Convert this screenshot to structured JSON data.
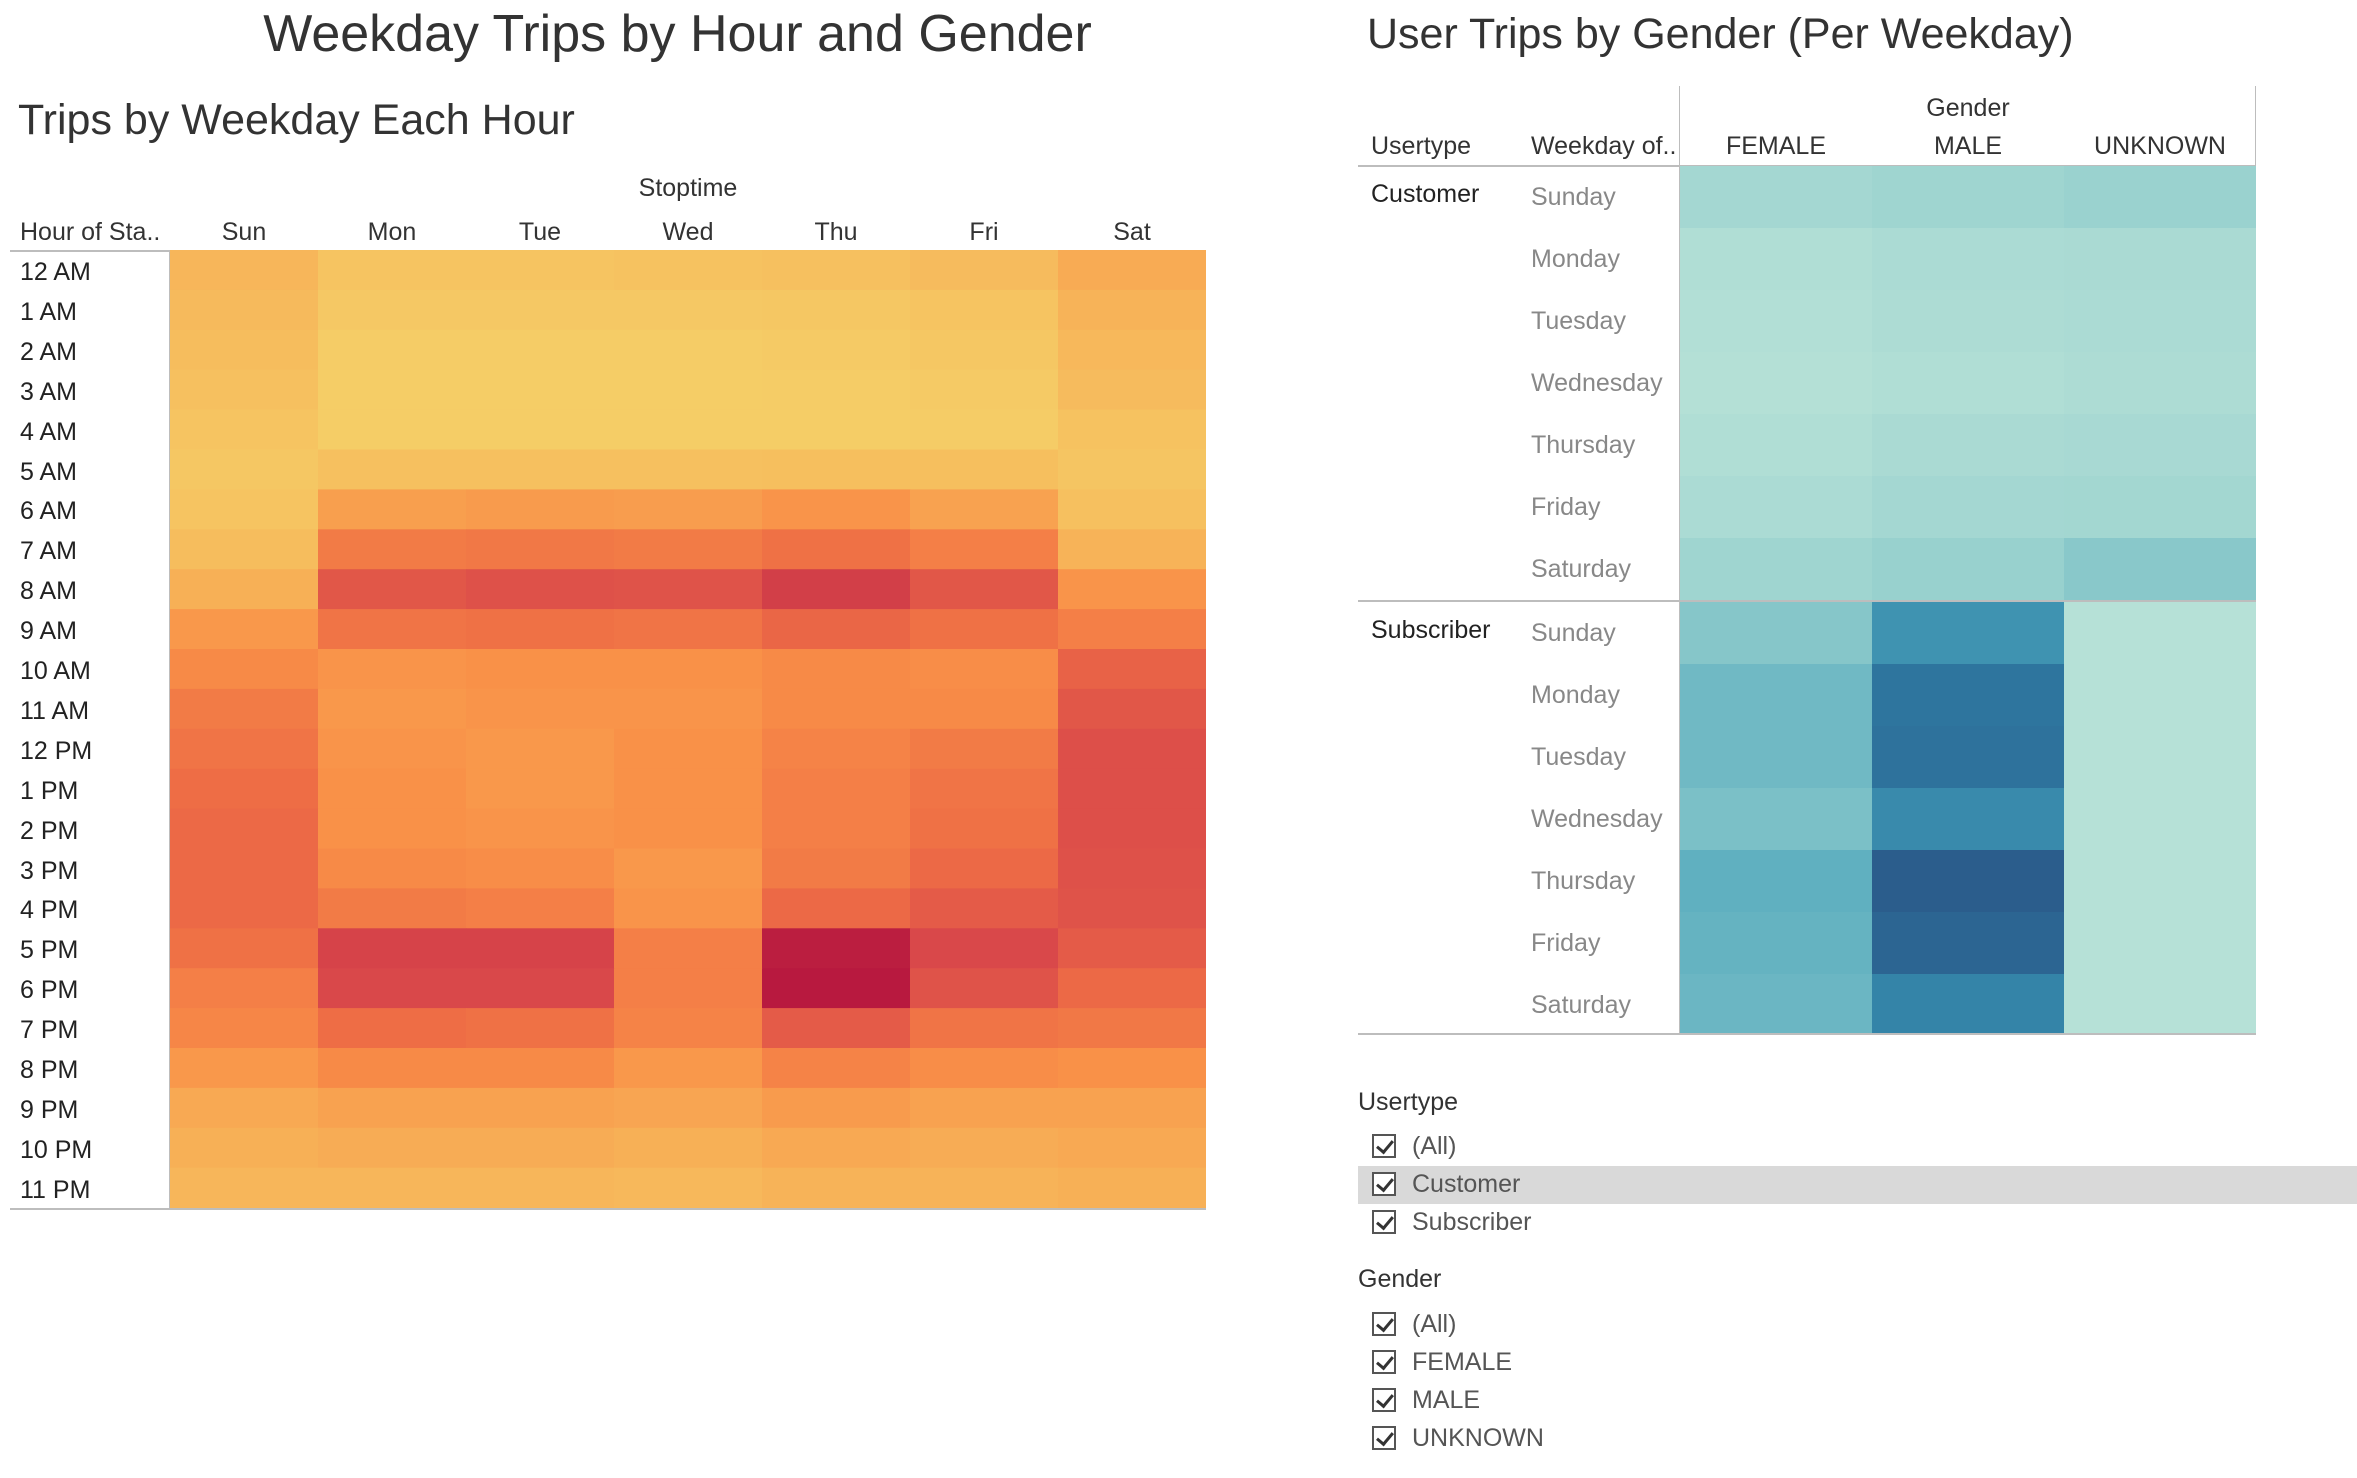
{
  "dashboard": {
    "title": "Weekday Trips by Hour and Gender"
  },
  "heatmap_hours": {
    "title": "Trips by Weekday Each Hour",
    "column_group": "Stoptime",
    "row_header": "Hour of Sta..",
    "days": [
      "Sun",
      "Mon",
      "Tue",
      "Wed",
      "Thu",
      "Fri",
      "Sat"
    ],
    "hours": [
      "12 AM",
      "1 AM",
      "2 AM",
      "3 AM",
      "4 AM",
      "5 AM",
      "6 AM",
      "7 AM",
      "8 AM",
      "9 AM",
      "10 AM",
      "11 AM",
      "12 PM",
      "1 PM",
      "2 PM",
      "3 PM",
      "4 PM",
      "5 PM",
      "6 PM",
      "7 PM",
      "8 PM",
      "9 PM",
      "10 PM",
      "11 PM"
    ],
    "color_scale": {
      "min": "#f4d46a",
      "mid1": "#f7b358",
      "mid2": "#f99148",
      "mid3": "#ee6d45",
      "mid4": "#d9484a",
      "max": "#b8193f"
    },
    "intensity": [
      [
        0.18,
        0.1,
        0.1,
        0.11,
        0.12,
        0.15,
        0.25
      ],
      [
        0.16,
        0.07,
        0.07,
        0.07,
        0.08,
        0.1,
        0.2
      ],
      [
        0.14,
        0.05,
        0.05,
        0.05,
        0.06,
        0.08,
        0.17
      ],
      [
        0.12,
        0.04,
        0.04,
        0.04,
        0.05,
        0.06,
        0.15
      ],
      [
        0.1,
        0.04,
        0.04,
        0.04,
        0.04,
        0.05,
        0.11
      ],
      [
        0.08,
        0.12,
        0.12,
        0.12,
        0.13,
        0.13,
        0.09
      ],
      [
        0.1,
        0.32,
        0.34,
        0.33,
        0.38,
        0.3,
        0.12
      ],
      [
        0.14,
        0.52,
        0.54,
        0.52,
        0.58,
        0.5,
        0.2
      ],
      [
        0.22,
        0.72,
        0.75,
        0.74,
        0.84,
        0.72,
        0.38
      ],
      [
        0.36,
        0.56,
        0.58,
        0.56,
        0.64,
        0.58,
        0.5
      ],
      [
        0.44,
        0.38,
        0.4,
        0.4,
        0.44,
        0.42,
        0.66
      ],
      [
        0.52,
        0.36,
        0.38,
        0.38,
        0.44,
        0.44,
        0.72
      ],
      [
        0.56,
        0.38,
        0.36,
        0.4,
        0.48,
        0.52,
        0.76
      ],
      [
        0.6,
        0.4,
        0.36,
        0.4,
        0.5,
        0.56,
        0.76
      ],
      [
        0.62,
        0.4,
        0.38,
        0.4,
        0.5,
        0.58,
        0.76
      ],
      [
        0.62,
        0.44,
        0.42,
        0.36,
        0.52,
        0.62,
        0.75
      ],
      [
        0.62,
        0.52,
        0.5,
        0.38,
        0.62,
        0.7,
        0.74
      ],
      [
        0.58,
        0.82,
        0.82,
        0.5,
        0.98,
        0.8,
        0.7
      ],
      [
        0.5,
        0.8,
        0.8,
        0.5,
        1.0,
        0.74,
        0.62
      ],
      [
        0.46,
        0.6,
        0.58,
        0.48,
        0.7,
        0.56,
        0.54
      ],
      [
        0.36,
        0.44,
        0.44,
        0.36,
        0.48,
        0.42,
        0.4
      ],
      [
        0.26,
        0.3,
        0.3,
        0.28,
        0.34,
        0.3,
        0.3
      ],
      [
        0.22,
        0.24,
        0.24,
        0.22,
        0.26,
        0.24,
        0.26
      ],
      [
        0.18,
        0.18,
        0.18,
        0.17,
        0.2,
        0.2,
        0.22
      ]
    ]
  },
  "heatmap_gender": {
    "title": "User Trips by Gender (Per Weekday)",
    "column_group": "Gender",
    "col_headers": [
      "Usertype",
      "Weekday of.."
    ],
    "genders": [
      "FEMALE",
      "MALE",
      "UNKNOWN"
    ],
    "groups": [
      {
        "usertype": "Customer",
        "weekdays": [
          "Sunday",
          "Monday",
          "Tuesday",
          "Wednesday",
          "Thursday",
          "Friday",
          "Saturday"
        ],
        "intensity": [
          [
            0.12,
            0.15,
            0.18
          ],
          [
            0.05,
            0.08,
            0.09
          ],
          [
            0.04,
            0.07,
            0.08
          ],
          [
            0.03,
            0.05,
            0.07
          ],
          [
            0.05,
            0.09,
            0.1
          ],
          [
            0.08,
            0.12,
            0.13
          ],
          [
            0.15,
            0.19,
            0.27
          ]
        ]
      },
      {
        "usertype": "Subscriber",
        "weekdays": [
          "Sunday",
          "Monday",
          "Tuesday",
          "Wednesday",
          "Thursday",
          "Friday",
          "Saturday"
        ],
        "intensity": [
          [
            0.28,
            0.6,
            0.02
          ],
          [
            0.36,
            0.8,
            0.02
          ],
          [
            0.36,
            0.82,
            0.02
          ],
          [
            0.32,
            0.66,
            0.02
          ],
          [
            0.42,
            0.98,
            0.02
          ],
          [
            0.4,
            0.92,
            0.02
          ],
          [
            0.38,
            0.7,
            0.02
          ]
        ]
      }
    ],
    "color_scale": {
      "min": "#b9e3d8",
      "mid1": "#8ecbcb",
      "mid2": "#4aa3bb",
      "mid3": "#2f7ca3",
      "max": "#2b5a8a"
    }
  },
  "filters": [
    {
      "title": "Usertype",
      "items": [
        {
          "label": "(All)",
          "checked": true
        },
        {
          "label": "Customer",
          "checked": true,
          "highlighted": true
        },
        {
          "label": "Subscriber",
          "checked": true
        }
      ]
    },
    {
      "title": "Gender",
      "items": [
        {
          "label": "(All)",
          "checked": true
        },
        {
          "label": "FEMALE",
          "checked": true
        },
        {
          "label": "MALE",
          "checked": true
        },
        {
          "label": "UNKNOWN",
          "checked": true
        }
      ]
    }
  ]
}
